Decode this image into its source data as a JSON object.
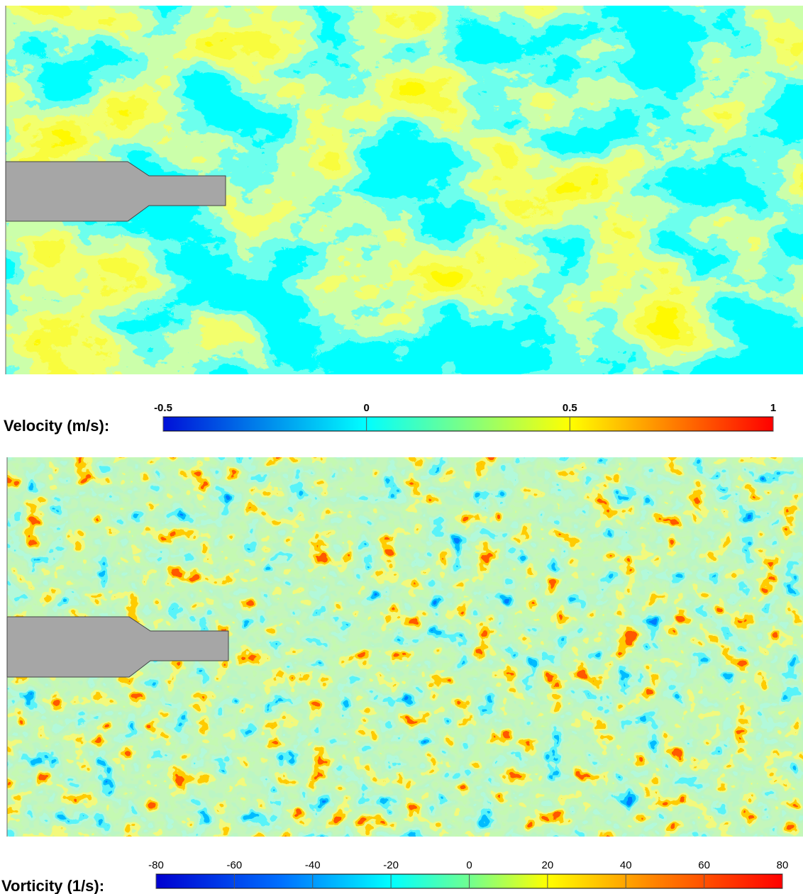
{
  "panels": [
    {
      "label": "Velocity (m/s):",
      "ticks": [
        -0.5,
        0,
        0.5,
        1
      ]
    },
    {
      "label": "Vorticity (1/s):",
      "ticks": [
        -80,
        -60,
        -40,
        -20,
        0,
        20,
        40,
        60,
        80
      ]
    }
  ]
}
